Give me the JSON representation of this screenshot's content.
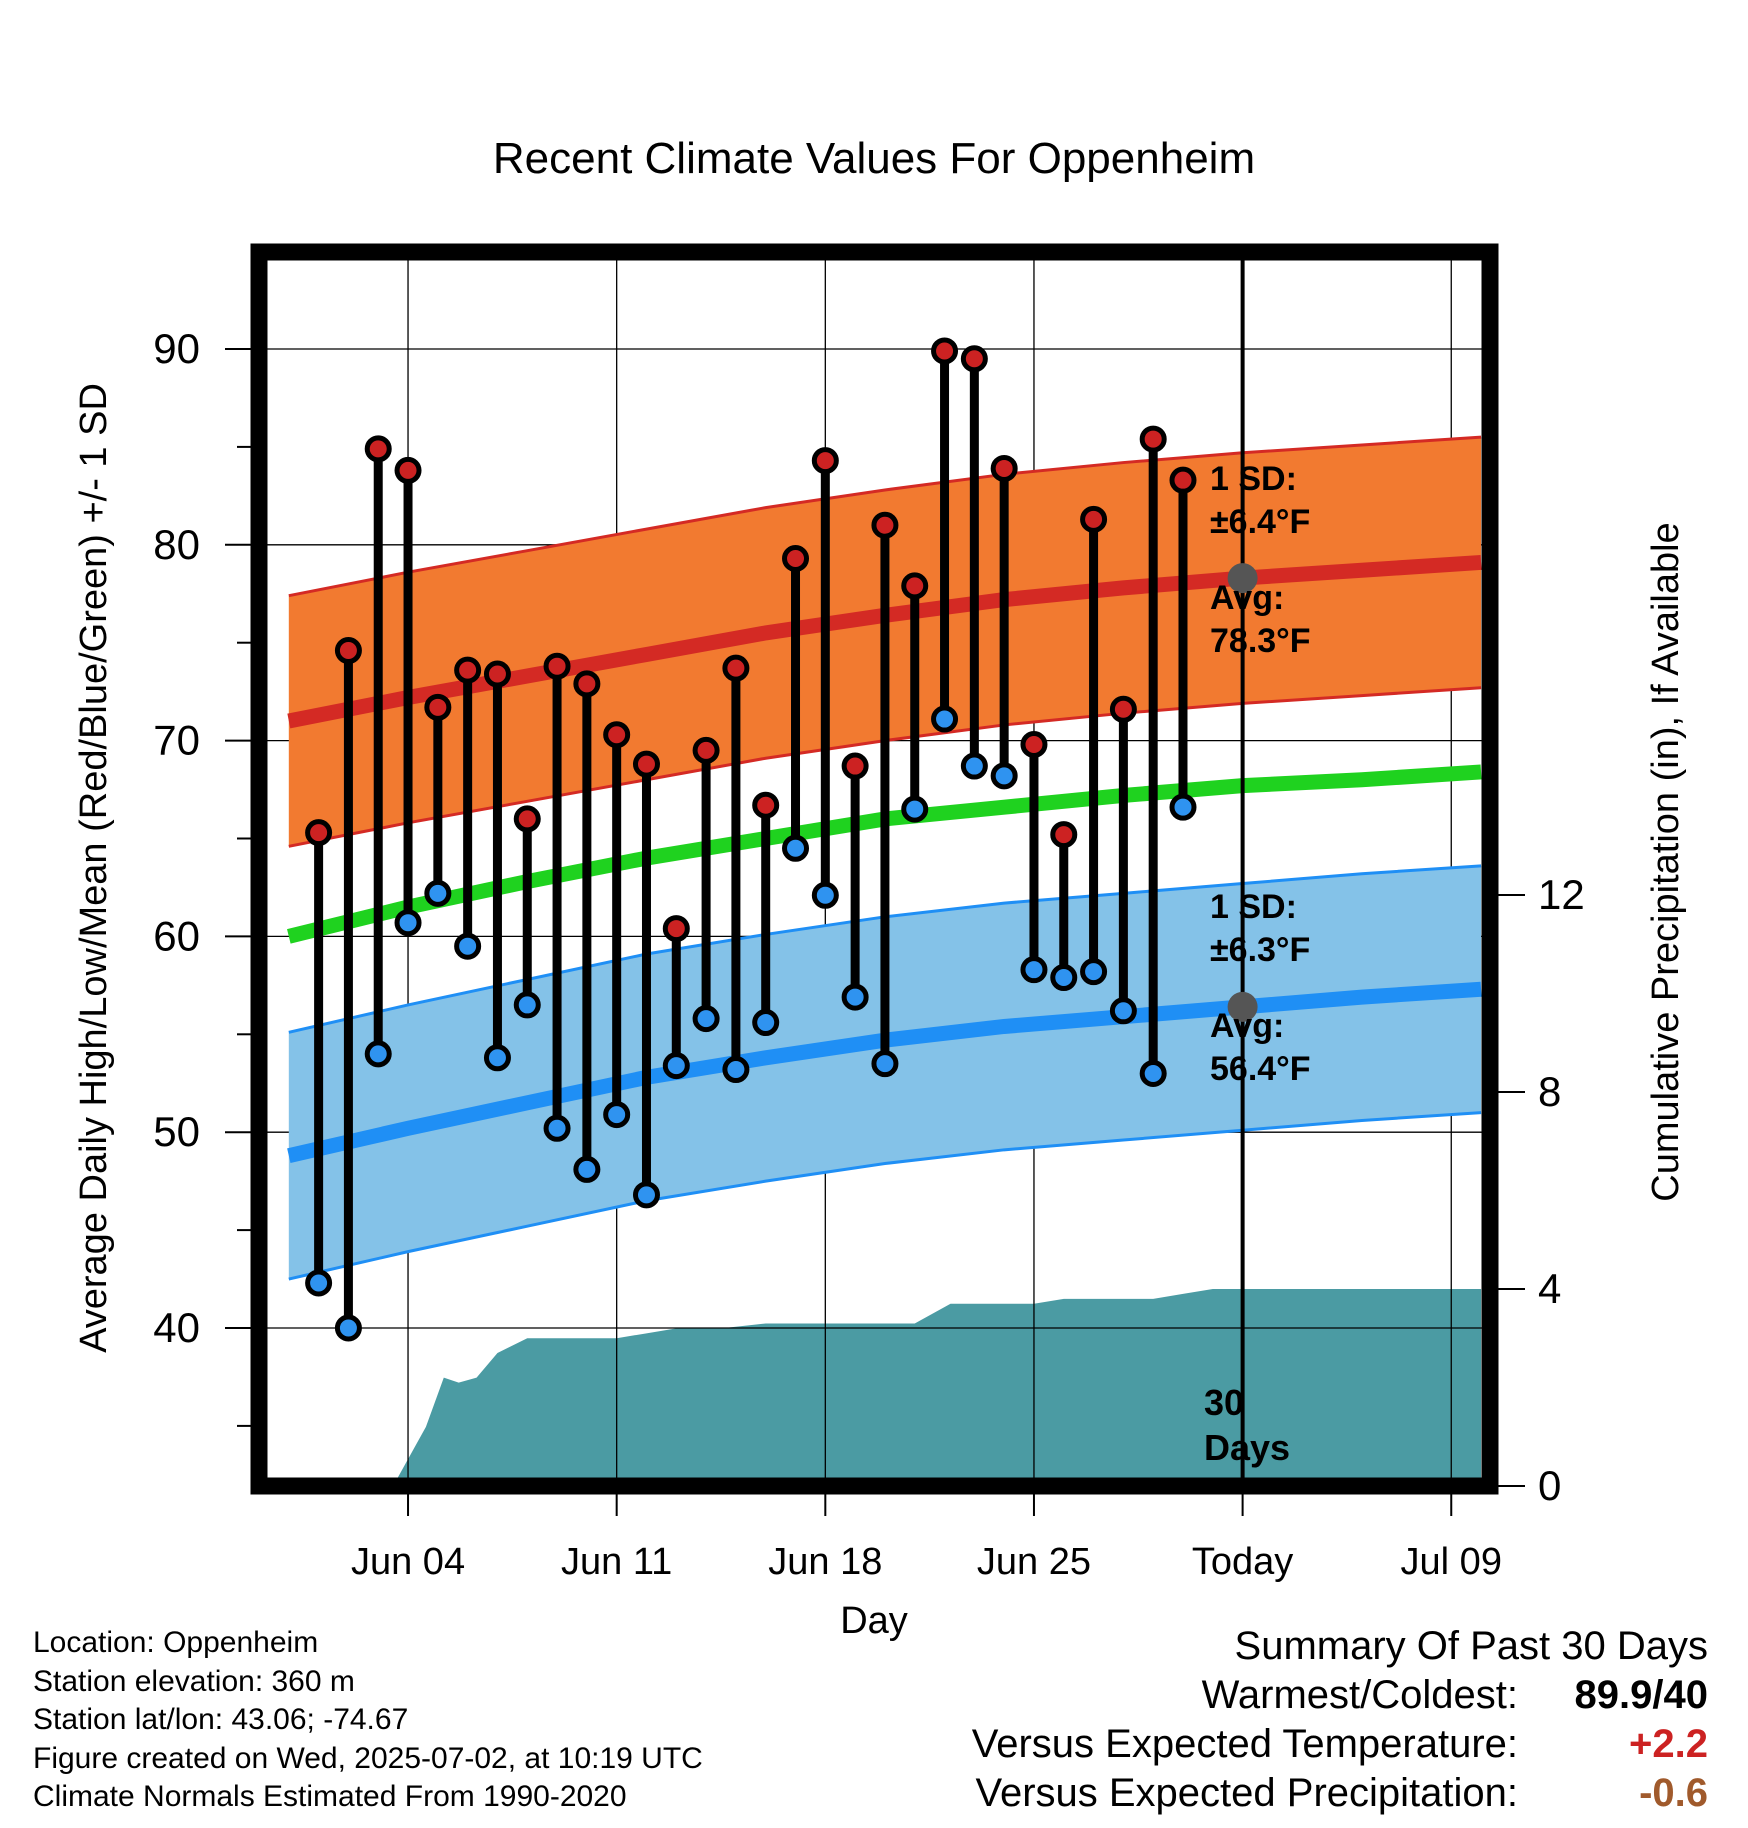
{
  "title": "Recent Climate Values For Oppenheim",
  "xlabel": "Day",
  "ylabel_left": "Average Daily High/Low/Mean (Red/Blue/Green) +/- 1 SD",
  "ylabel_right": "Cumulative Precipitation (in), If Available",
  "today_marker": {
    "label_line1": "30",
    "label_line2": "Days"
  },
  "annotations": {
    "high_sd_line1": "1 SD:",
    "high_sd_line2": "±6.4°F",
    "high_avg_line1": "Avg:",
    "high_avg_line2": "78.3°F",
    "low_sd_line1": "1 SD:",
    "low_sd_line2": "±6.3°F",
    "low_avg_line1": "Avg:",
    "low_avg_line2": "56.4°F"
  },
  "colors": {
    "high_band": "#f27a30",
    "high_avg_line": "#d42a24",
    "low_band": "#84c2e8",
    "low_avg_line": "#1f8ff5",
    "mean_line": "#1fd21f",
    "precip": "#4b9ba3",
    "high_dot": "#cc2222",
    "low_dot": "#2f93f0",
    "annotation_text": "#4d4d4d",
    "temp_anomaly": "#cc2222",
    "precip_anomaly": "#a05a2c"
  },
  "chart_data": {
    "type": "line",
    "x_range": [
      "May 31",
      "Jul 12"
    ],
    "x_ticks": [
      "Jun 04",
      "Jun 11",
      "Jun 18",
      "Jun 25",
      "Today",
      "Jul 09"
    ],
    "x_tick_days": [
      4,
      11,
      18,
      25,
      32,
      39
    ],
    "today_day": 32,
    "ylim_left": [
      32.5,
      95
    ],
    "y_ticks_left": [
      40,
      50,
      60,
      70,
      80,
      90
    ],
    "ylim_right": [
      0,
      30
    ],
    "y_ticks_right": [
      0,
      4,
      8,
      12
    ],
    "grid": true,
    "observed": {
      "days": [
        1,
        2,
        3,
        4,
        5,
        6,
        7,
        8,
        9,
        10,
        11,
        12,
        13,
        14,
        15,
        16,
        17,
        18,
        19,
        20,
        21,
        22,
        23,
        24,
        25,
        26,
        27,
        28,
        29,
        30,
        31
      ],
      "high": [
        65.3,
        74.6,
        84.9,
        83.8,
        71.7,
        73.6,
        73.4,
        66.0,
        73.8,
        72.9,
        70.3,
        68.8,
        60.4,
        69.5,
        73.7,
        66.7,
        79.3,
        84.3,
        68.7,
        81.0,
        77.9,
        89.9,
        89.5,
        83.9,
        69.8,
        65.2,
        81.3,
        71.6,
        85.4,
        83.3,
        null
      ],
      "low": [
        42.3,
        40.0,
        54.0,
        60.7,
        62.2,
        59.5,
        53.8,
        56.5,
        50.2,
        48.1,
        50.9,
        46.8,
        53.4,
        55.8,
        53.2,
        55.6,
        64.5,
        62.1,
        56.9,
        53.5,
        66.5,
        71.1,
        68.7,
        68.2,
        58.3,
        57.9,
        58.2,
        56.2,
        53.0,
        66.6,
        null
      ]
    },
    "normals": {
      "days": [
        0,
        4,
        8,
        12,
        16,
        20,
        24,
        28,
        32,
        36,
        40
      ],
      "avg_high": [
        71.0,
        72.2,
        73.3,
        74.4,
        75.5,
        76.4,
        77.2,
        77.8,
        78.3,
        78.7,
        79.1
      ],
      "high_sd": 6.4,
      "avg_low": [
        48.8,
        50.2,
        51.5,
        52.8,
        53.8,
        54.7,
        55.4,
        55.9,
        56.4,
        56.9,
        57.3
      ],
      "low_sd": 6.3,
      "avg_mean": [
        60.0,
        61.5,
        62.8,
        64.0,
        65.0,
        66.0,
        66.6,
        67.2,
        67.7,
        68.0,
        68.4
      ]
    },
    "cumulative_precip": {
      "days": [
        2.2,
        3.5,
        4.6,
        5.2,
        5.7,
        6.3,
        7.0,
        8.0,
        9.0,
        11.0,
        12.0,
        13.0,
        14.5,
        16.0,
        18.0,
        21.0,
        22.2,
        25.0,
        26.0,
        27.0,
        29.0,
        30.0,
        31.0,
        32.0,
        40.0
      ],
      "values": [
        0,
        0,
        1.2,
        2.2,
        2.1,
        2.2,
        2.7,
        3.0,
        3.0,
        3.0,
        3.1,
        3.2,
        3.2,
        3.3,
        3.3,
        3.3,
        3.7,
        3.7,
        3.8,
        3.8,
        3.8,
        3.9,
        4.0,
        4.0,
        4.0
      ]
    }
  },
  "footer": {
    "location": "Location: Oppenheim",
    "elevation": "Station elevation: 360 m",
    "latlon": "Station lat/lon: 43.06; -74.67",
    "created": "Figure created on Wed, 2025-07-02, at 10:19 UTC",
    "normals": "Climate Normals Estimated From 1990-2020"
  },
  "summary": {
    "heading": "Summary Of Past 30 Days",
    "warmest_coldest_label": "Warmest/Coldest:",
    "warmest_coldest_value": "89.9/40",
    "temp_label": "Versus Expected Temperature:",
    "temp_value": "+2.2",
    "precip_label": "Versus Expected Precipitation:",
    "precip_value": "-0.6"
  }
}
